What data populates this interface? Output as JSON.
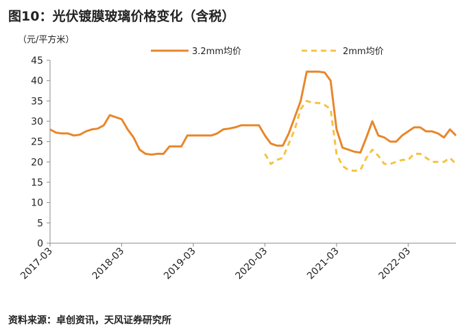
{
  "chart_data": {
    "type": "line",
    "title": "图10：光伏镀膜玻璃价格变化（含税）",
    "y_label": "（元/平方米）",
    "source": "资料来源：卓创资讯，天风证券研究所",
    "x": [
      "2017-03",
      "2017-04",
      "2017-05",
      "2017-06",
      "2017-07",
      "2017-08",
      "2017-09",
      "2017-10",
      "2017-11",
      "2017-12",
      "2018-01",
      "2018-02",
      "2018-03",
      "2018-04",
      "2018-05",
      "2018-06",
      "2018-07",
      "2018-08",
      "2018-09",
      "2018-10",
      "2018-11",
      "2018-12",
      "2019-01",
      "2019-02",
      "2019-03",
      "2019-04",
      "2019-05",
      "2019-06",
      "2019-07",
      "2019-08",
      "2019-09",
      "2019-10",
      "2019-11",
      "2019-12",
      "2020-01",
      "2020-02",
      "2020-03",
      "2020-04",
      "2020-05",
      "2020-06",
      "2020-07",
      "2020-08",
      "2020-09",
      "2020-10",
      "2020-11",
      "2020-12",
      "2021-01",
      "2021-02",
      "2021-03",
      "2021-04",
      "2021-05",
      "2021-06",
      "2021-07",
      "2021-08",
      "2021-09",
      "2021-10",
      "2021-11",
      "2021-12",
      "2022-01",
      "2022-02",
      "2022-03",
      "2022-04",
      "2022-05",
      "2022-06",
      "2022-07",
      "2022-08",
      "2022-09",
      "2022-10",
      "2022-11"
    ],
    "xticks": [
      "2017-03",
      "2018-03",
      "2019-03",
      "2020-03",
      "2021-03",
      "2022-03"
    ],
    "ylim": [
      0,
      45
    ],
    "yticks": [
      0,
      5,
      10,
      15,
      20,
      25,
      30,
      35,
      40,
      45
    ],
    "series": [
      {
        "name": "3.2mm均价",
        "color": "#e8862a",
        "dashed": false,
        "values": [
          28,
          27.2,
          27,
          27,
          26.5,
          26.7,
          27.5,
          28,
          28.2,
          29,
          31.5,
          31,
          30.5,
          28,
          26,
          23,
          22,
          21.8,
          22,
          22,
          23.8,
          23.8,
          23.8,
          26.5,
          26.5,
          26.5,
          26.5,
          26.5,
          27,
          28,
          28.2,
          28.5,
          29,
          29,
          29,
          29,
          26.5,
          24.5,
          24,
          24,
          27,
          31,
          35,
          42.2,
          42.2,
          42.2,
          42,
          40,
          28,
          23.5,
          23,
          22.5,
          22.3,
          26,
          30,
          26.5,
          26,
          25,
          25,
          26.5,
          27.5,
          28.5,
          28.5,
          27.5,
          27.5,
          27,
          26,
          28,
          26.5
        ]
      },
      {
        "name": "2mm均价",
        "color": "#f5c342",
        "dashed": true,
        "values": [
          null,
          null,
          null,
          null,
          null,
          null,
          null,
          null,
          null,
          null,
          null,
          null,
          null,
          null,
          null,
          null,
          null,
          null,
          null,
          null,
          null,
          null,
          null,
          null,
          null,
          null,
          null,
          null,
          null,
          null,
          null,
          null,
          null,
          null,
          null,
          null,
          22,
          19.5,
          20.5,
          21,
          24.5,
          28,
          33,
          35,
          34.5,
          34.5,
          34,
          33,
          22,
          19,
          18,
          17.8,
          18,
          21,
          23,
          21.5,
          19.5,
          19.5,
          20,
          20.5,
          20.5,
          22,
          22,
          21,
          20,
          20,
          20,
          21,
          19.5
        ]
      }
    ]
  }
}
